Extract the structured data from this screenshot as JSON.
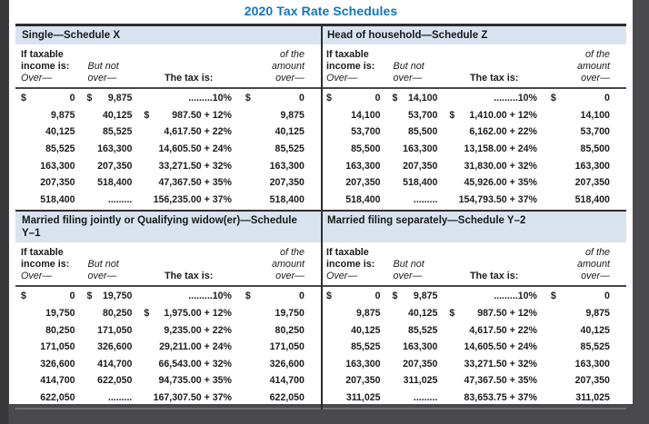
{
  "page_title": "2020 Tax Rate Schedules",
  "colors": {
    "title_blue": "#1076bf",
    "band_blue": "#d9e3f0",
    "text": "#1c1c1c",
    "rule_dark": "#2e2d2e",
    "rule_gray": "#707175",
    "backdrop": "#4a4a4e",
    "page": "#ffffff"
  },
  "col_headers": {
    "if_taxable": "If taxable",
    "income_is": "income is:",
    "over1": "Over—",
    "but_not": "But not",
    "over2": "over—",
    "tax_is": "The tax is:",
    "of_the": "of the",
    "amount": "amount",
    "over3": "over—"
  },
  "schedules": [
    {
      "title": "Single—Schedule X",
      "rows": [
        {
          "s1": "$",
          "over": "0",
          "s2": "$",
          "butnot": "9,875",
          "tax": ".........10%",
          "s4": "$",
          "amt": "0"
        },
        {
          "over": "9,875",
          "butnot": "40,125",
          "s3": "$",
          "tax": "987.50 + 12%",
          "amt": "9,875"
        },
        {
          "over": "40,125",
          "butnot": "85,525",
          "tax": "4,617.50 + 22%",
          "amt": "40,125"
        },
        {
          "over": "85,525",
          "butnot": "163,300",
          "tax": "14,605.50 + 24%",
          "amt": "85,525"
        },
        {
          "over": "163,300",
          "butnot": "207,350",
          "tax": "33,271.50 + 32%",
          "amt": "163,300"
        },
        {
          "over": "207,350",
          "butnot": "518,400",
          "tax": "47,367.50 + 35%",
          "amt": "207,350"
        },
        {
          "over": "518,400",
          "butnot": ".........",
          "tax": "156,235.00 + 37%",
          "amt": "518,400"
        }
      ]
    },
    {
      "title": "Head of household—Schedule Z",
      "rows": [
        {
          "s1": "$",
          "over": "0",
          "s2": "$",
          "butnot": "14,100",
          "tax": ".........10%",
          "s4": "$",
          "amt": "0"
        },
        {
          "over": "14,100",
          "butnot": "53,700",
          "s3": "$",
          "tax": "1,410.00 + 12%",
          "amt": "14,100"
        },
        {
          "over": "53,700",
          "butnot": "85,500",
          "tax": "6,162.00 + 22%",
          "amt": "53,700"
        },
        {
          "over": "85,500",
          "butnot": "163,300",
          "tax": "13,158.00 + 24%",
          "amt": "85,500"
        },
        {
          "over": "163,300",
          "butnot": "207,350",
          "tax": "31,830.00 + 32%",
          "amt": "163,300"
        },
        {
          "over": "207,350",
          "butnot": "518,400",
          "tax": "45,926.00 + 35%",
          "amt": "207,350"
        },
        {
          "over": "518,400",
          "butnot": ".........",
          "tax": "154,793.50 + 37%",
          "amt": "518,400"
        }
      ]
    },
    {
      "title": "Married filing jointly or Qualifying widow(er)—Schedule Y–1",
      "rows": [
        {
          "s1": "$",
          "over": "0",
          "s2": "$",
          "butnot": "19,750",
          "tax": ".........10%",
          "s4": "$",
          "amt": "0"
        },
        {
          "over": "19,750",
          "butnot": "80,250",
          "s3": "$",
          "tax": "1,975.00 + 12%",
          "amt": "19,750"
        },
        {
          "over": "80,250",
          "butnot": "171,050",
          "tax": "9,235.00 + 22%",
          "amt": "80,250"
        },
        {
          "over": "171,050",
          "butnot": "326,600",
          "tax": "29,211.00 + 24%",
          "amt": "171,050"
        },
        {
          "over": "326,600",
          "butnot": "414,700",
          "tax": "66,543.00 + 32%",
          "amt": "326,600"
        },
        {
          "over": "414,700",
          "butnot": "622,050",
          "tax": "94,735.00 + 35%",
          "amt": "414,700"
        },
        {
          "over": "622,050",
          "butnot": ".........",
          "tax": "167,307.50 + 37%",
          "amt": "622,050"
        }
      ]
    },
    {
      "title": "Married filing separately—Schedule Y–2",
      "rows": [
        {
          "s1": "$",
          "over": "0",
          "s2": "$",
          "butnot": "9,875",
          "tax": ".........10%",
          "s4": "$",
          "amt": "0"
        },
        {
          "over": "9,875",
          "butnot": "40,125",
          "s3": "$",
          "tax": "987.50 + 12%",
          "amt": "9,875"
        },
        {
          "over": "40,125",
          "butnot": "85,525",
          "tax": "4,617.50 + 22%",
          "amt": "40,125"
        },
        {
          "over": "85,525",
          "butnot": "163,300",
          "tax": "14,605.50 + 24%",
          "amt": "85,525"
        },
        {
          "over": "163,300",
          "butnot": "207,350",
          "tax": "33,271.50 + 32%",
          "amt": "163,300"
        },
        {
          "over": "207,350",
          "butnot": "311,025",
          "tax": "47,367.50 + 35%",
          "amt": "207,350"
        },
        {
          "over": "311,025",
          "butnot": ".........",
          "tax": "83,653.75 + 37%",
          "amt": "311,025"
        }
      ]
    }
  ]
}
